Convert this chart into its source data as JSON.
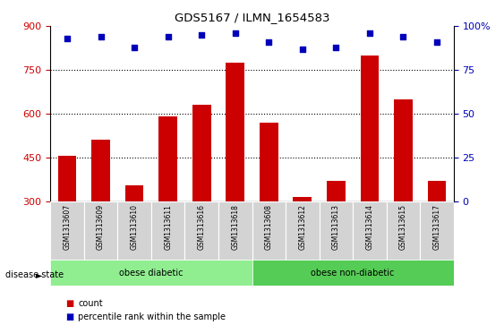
{
  "title": "GDS5167 / ILMN_1654583",
  "samples": [
    "GSM1313607",
    "GSM1313609",
    "GSM1313610",
    "GSM1313611",
    "GSM1313616",
    "GSM1313618",
    "GSM1313608",
    "GSM1313612",
    "GSM1313613",
    "GSM1313614",
    "GSM1313615",
    "GSM1313617"
  ],
  "counts": [
    455,
    510,
    355,
    590,
    630,
    775,
    570,
    315,
    370,
    800,
    650,
    370
  ],
  "percentiles": [
    93,
    94,
    88,
    94,
    95,
    96,
    91,
    87,
    88,
    96,
    94,
    91
  ],
  "groups": [
    "obese diabetic",
    "obese diabetic",
    "obese diabetic",
    "obese diabetic",
    "obese diabetic",
    "obese diabetic",
    "obese non-diabetic",
    "obese non-diabetic",
    "obese non-diabetic",
    "obese non-diabetic",
    "obese non-diabetic",
    "obese non-diabetic"
  ],
  "group_color_map": {
    "obese diabetic": "#90EE90",
    "obese non-diabetic": "#55CC55"
  },
  "bar_color": "#CC0000",
  "dot_color": "#0000BB",
  "ylim_left": [
    300,
    900
  ],
  "ylim_right": [
    0,
    100
  ],
  "yticks_left": [
    300,
    450,
    600,
    750,
    900
  ],
  "yticks_right": [
    0,
    25,
    50,
    75,
    100
  ],
  "grid_values": [
    450,
    600,
    750
  ],
  "disease_state_label": "disease state",
  "legend_count_label": "count",
  "legend_pct_label": "percentile rank within the sample",
  "bar_width": 0.55,
  "label_bg_color": "#D3D3D3",
  "plot_bg": "#FFFFFF"
}
